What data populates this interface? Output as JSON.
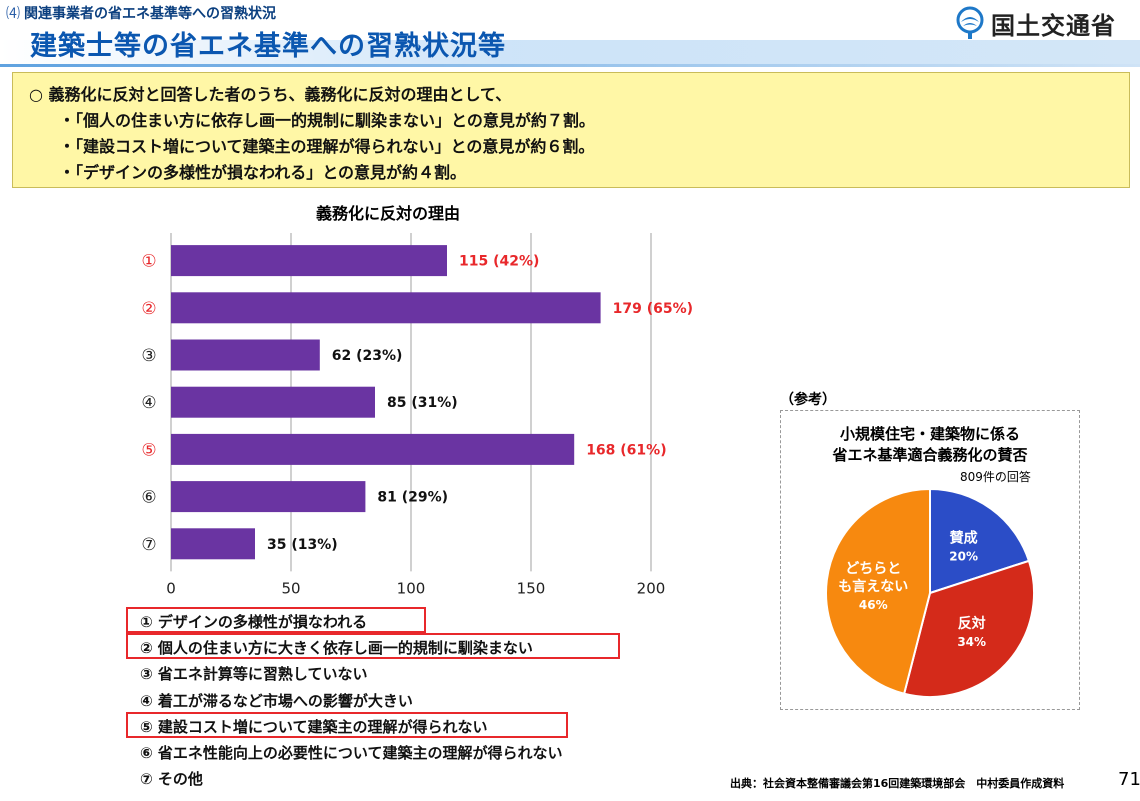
{
  "header": {
    "section_number": "⑷",
    "section_label": "関連事業者の省エネ基準等への習熟状況",
    "title": "建築士等の省エネ基準への習熟状況等",
    "logo_text": "国土交通省",
    "logo_icon": "mlit-logo-icon",
    "accent_color": "#0b57b0"
  },
  "summary": {
    "lines": [
      "○ 義務化に反対と回答した者のうち、義務化に反対の理由として、",
      "・「個人の住まい方に依存し画一的規制に馴染まない」との意見が約７割。",
      "・「建設コスト増について建築主の理解が得られない」との意見が約６割。",
      "・「デザインの多様性が損なわれる」との意見が約４割。"
    ],
    "background_color": "#fff7a6"
  },
  "reasons": [
    {
      "label": "① デザインの多様性が損なわれる",
      "highlighted": true
    },
    {
      "label": "② 個人の住まい方に大きく依存し画一的規制に馴染まない",
      "highlighted": true
    },
    {
      "label": "③ 省エネ計算等に習熟していない",
      "highlighted": false
    },
    {
      "label": "④ 着工が滞るなど市場への影響が大きい",
      "highlighted": false
    },
    {
      "label": "⑤ 建設コスト増について建築主の理解が得られない",
      "highlighted": true
    },
    {
      "label": "⑥ 省エネ性能向上の必要性について建築主の理解が得られない",
      "highlighted": false
    },
    {
      "label": "⑦ その他",
      "highlighted": false
    }
  ],
  "reference": {
    "label": "（参考）",
    "pie_title_line1": "小規模住宅・建築物に係る",
    "pie_title_line2": "省エネ基準適合義務化の賛否",
    "pie_note": "809件の回答"
  },
  "footer": {
    "source": "出典：社会資本整備審議会第16回建築環境部会　中村委員作成資料",
    "page_number": "71"
  },
  "chart_data": [
    {
      "type": "bar",
      "orientation": "horizontal",
      "title": "義務化に反対の理由",
      "categories": [
        "①",
        "②",
        "③",
        "④",
        "⑤",
        "⑥",
        "⑦"
      ],
      "values": [
        115,
        179,
        62,
        85,
        168,
        81,
        35
      ],
      "data_labels": [
        "115 (42%)",
        "179 (65%)",
        "62 (23%)",
        "85 (31%)",
        "168 (61%)",
        "81 (29%)",
        "35 (13%)"
      ],
      "highlighted_categories": [
        "①",
        "②",
        "⑤"
      ],
      "xlim": [
        0,
        200
      ],
      "x_ticks": [
        0,
        50,
        100,
        150,
        200
      ],
      "grid": true,
      "bar_color": "#6a34a2",
      "highlight_color": "#e8282b"
    },
    {
      "type": "pie",
      "categories": [
        "賛成",
        "反対",
        "どちらとも言えない"
      ],
      "values": [
        20,
        34,
        46
      ],
      "value_labels": [
        "20%",
        "34%",
        "46%"
      ],
      "colors": [
        "#2b4dc7",
        "#d42a1a",
        "#f7890f"
      ]
    }
  ]
}
